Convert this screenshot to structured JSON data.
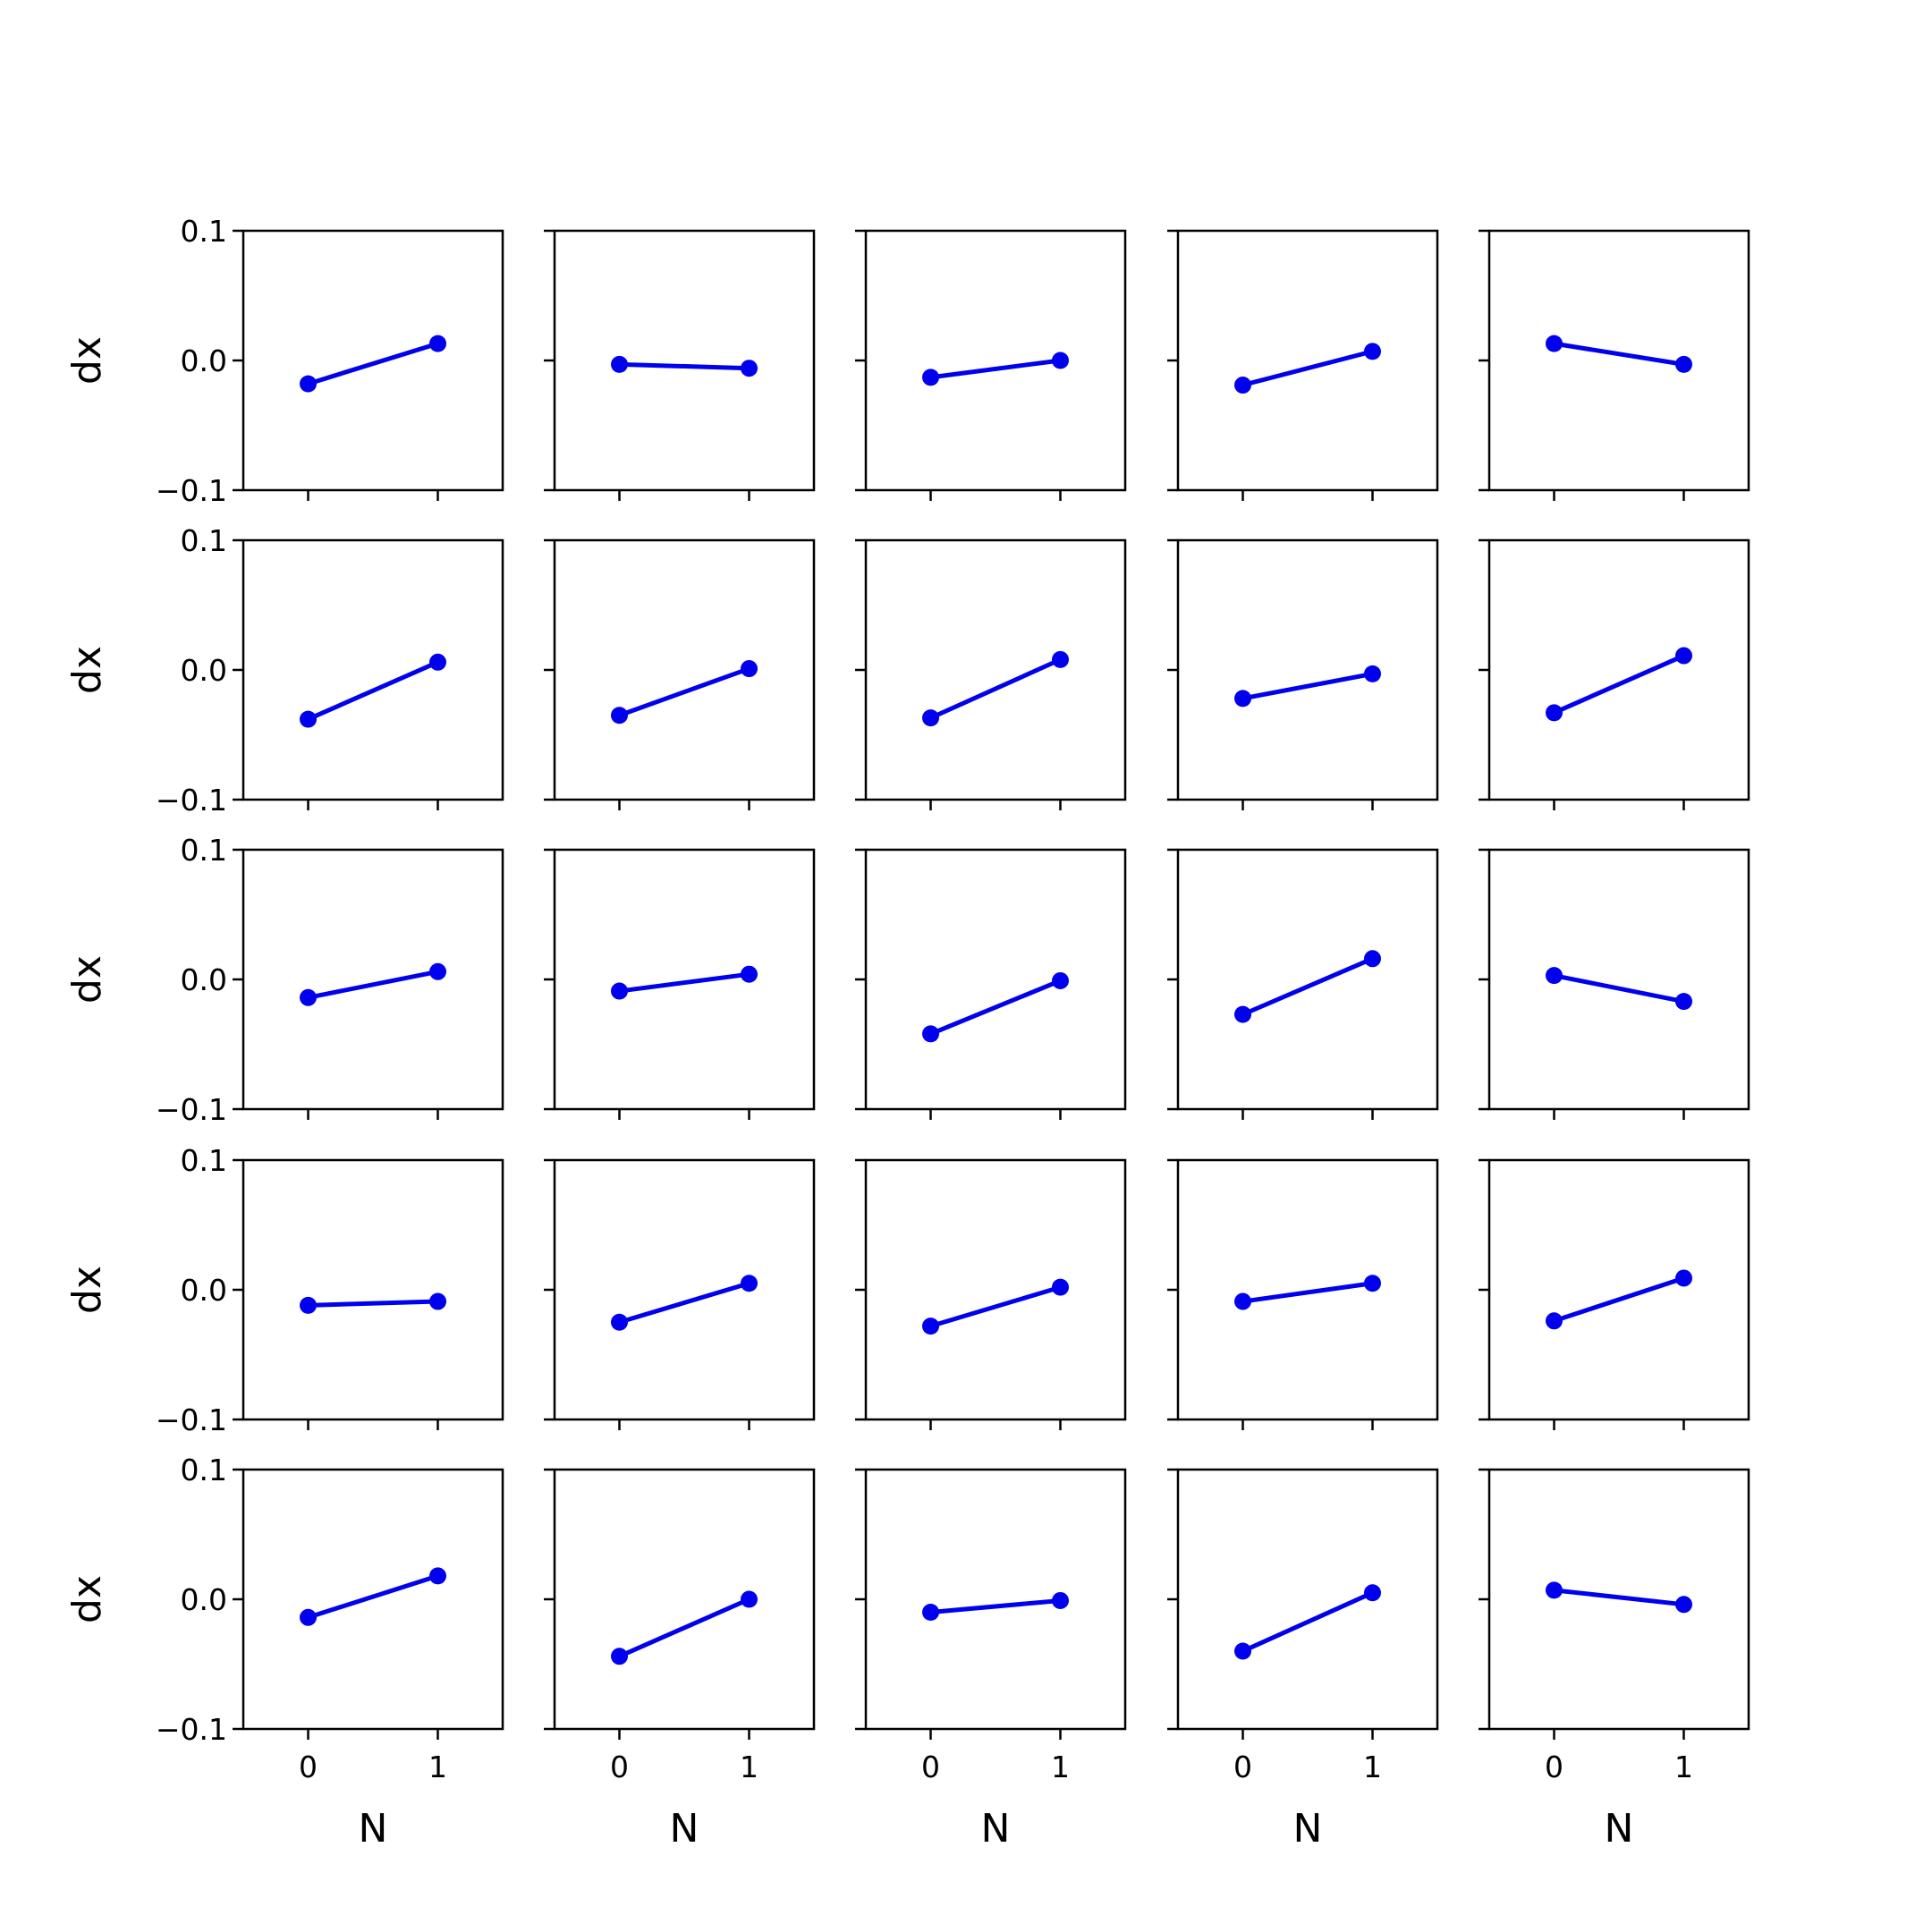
{
  "figure": {
    "background": "#ffffff",
    "line_color": "#0000ee",
    "marker_color": "#0000ee",
    "frame_color": "#000000"
  },
  "chart_data": {
    "type": "line",
    "layout": "5x5 grid of small multiples, shared axes",
    "xlabel": "N",
    "ylabel": "dx",
    "x": [
      0,
      1
    ],
    "x_ticks": [
      "0",
      "1"
    ],
    "xlim": [
      -0.5,
      1.5
    ],
    "y_ticks": [
      "0.1",
      "0.0",
      "−0.1"
    ],
    "y_tick_values": [
      0.1,
      0.0,
      -0.1
    ],
    "ylim": [
      -0.1,
      0.1
    ],
    "grid": false,
    "legend": "none",
    "marker": "circle",
    "panels": [
      {
        "row": 0,
        "col": 0,
        "y": [
          -0.018,
          0.013
        ]
      },
      {
        "row": 0,
        "col": 1,
        "y": [
          -0.003,
          -0.006
        ]
      },
      {
        "row": 0,
        "col": 2,
        "y": [
          -0.013,
          0.0
        ]
      },
      {
        "row": 0,
        "col": 3,
        "y": [
          -0.019,
          0.007
        ]
      },
      {
        "row": 0,
        "col": 4,
        "y": [
          0.013,
          -0.003
        ]
      },
      {
        "row": 1,
        "col": 0,
        "y": [
          -0.038,
          0.006
        ]
      },
      {
        "row": 1,
        "col": 1,
        "y": [
          -0.035,
          0.001
        ]
      },
      {
        "row": 1,
        "col": 2,
        "y": [
          -0.037,
          0.008
        ]
      },
      {
        "row": 1,
        "col": 3,
        "y": [
          -0.022,
          -0.003
        ]
      },
      {
        "row": 1,
        "col": 4,
        "y": [
          -0.033,
          0.011
        ]
      },
      {
        "row": 2,
        "col": 0,
        "y": [
          -0.014,
          0.006
        ]
      },
      {
        "row": 2,
        "col": 1,
        "y": [
          -0.009,
          0.004
        ]
      },
      {
        "row": 2,
        "col": 2,
        "y": [
          -0.042,
          -0.001
        ]
      },
      {
        "row": 2,
        "col": 3,
        "y": [
          -0.027,
          0.016
        ]
      },
      {
        "row": 2,
        "col": 4,
        "y": [
          0.003,
          -0.017
        ]
      },
      {
        "row": 3,
        "col": 0,
        "y": [
          -0.012,
          -0.009
        ]
      },
      {
        "row": 3,
        "col": 1,
        "y": [
          -0.025,
          0.005
        ]
      },
      {
        "row": 3,
        "col": 2,
        "y": [
          -0.028,
          0.002
        ]
      },
      {
        "row": 3,
        "col": 3,
        "y": [
          -0.009,
          0.005
        ]
      },
      {
        "row": 3,
        "col": 4,
        "y": [
          -0.024,
          0.009
        ]
      },
      {
        "row": 4,
        "col": 0,
        "y": [
          -0.014,
          0.018
        ]
      },
      {
        "row": 4,
        "col": 1,
        "y": [
          -0.044,
          0.0
        ]
      },
      {
        "row": 4,
        "col": 2,
        "y": [
          -0.01,
          -0.001
        ]
      },
      {
        "row": 4,
        "col": 3,
        "y": [
          -0.04,
          0.005
        ]
      },
      {
        "row": 4,
        "col": 4,
        "y": [
          0.007,
          -0.004
        ]
      }
    ]
  }
}
